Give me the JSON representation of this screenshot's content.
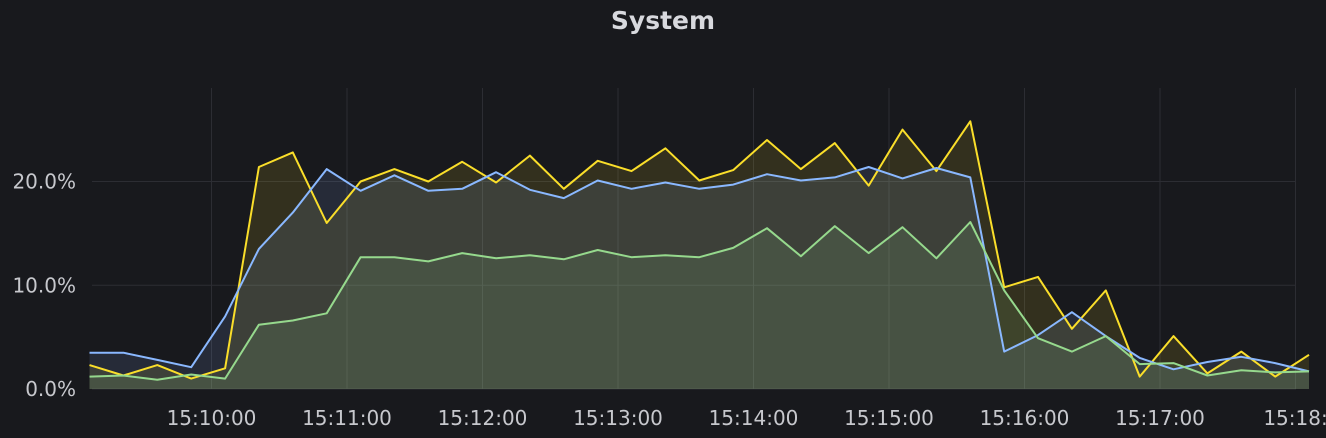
{
  "panel": {
    "title": "System"
  },
  "chart_data": {
    "type": "area",
    "title": "System",
    "xlabel": "",
    "ylabel": "",
    "x_tick_labels": [
      "15:10:00",
      "15:11:00",
      "15:12:00",
      "15:13:00",
      "15:14:00",
      "15:15:00",
      "15:16:00",
      "15:17:00",
      "15:18:"
    ],
    "y_tick_labels": [
      "0.0%",
      "10.0%",
      "20.0%"
    ],
    "y_ticks": [
      0,
      10,
      20
    ],
    "ylim": [
      0,
      30
    ],
    "x_start_minutes": -0.9,
    "x_step_minutes": 0.25,
    "grid": true,
    "legend": "none",
    "colors": {
      "yellow": "#fade2a",
      "blue": "#8ab8ff",
      "green": "#96d98d"
    },
    "series": [
      {
        "color": "yellow",
        "values": [
          2.3,
          1.3,
          2.3,
          1.0,
          2.0,
          21.4,
          22.8,
          16.0,
          20.0,
          21.2,
          20.0,
          21.9,
          19.9,
          22.5,
          19.3,
          22.0,
          21.0,
          23.2,
          20.1,
          21.1,
          24.0,
          21.2,
          23.7,
          19.6,
          25.0,
          21.0,
          25.8,
          9.8,
          10.8,
          5.8,
          9.5,
          1.2,
          5.1,
          1.5,
          3.6,
          1.2,
          3.3
        ]
      },
      {
        "color": "blue",
        "values": [
          3.5,
          3.5,
          2.8,
          2.1,
          7.0,
          13.5,
          17.0,
          21.2,
          19.1,
          20.6,
          19.1,
          19.3,
          20.9,
          19.2,
          18.4,
          20.1,
          19.3,
          19.9,
          19.3,
          19.7,
          20.7,
          20.1,
          20.4,
          21.4,
          20.3,
          21.3,
          20.4,
          3.6,
          5.2,
          7.4,
          5.1,
          3.0,
          1.9,
          2.6,
          3.1,
          2.5,
          1.7
        ]
      },
      {
        "color": "green",
        "values": [
          1.2,
          1.3,
          0.9,
          1.4,
          1.0,
          6.2,
          6.6,
          7.3,
          12.7,
          12.7,
          12.3,
          13.1,
          12.6,
          12.9,
          12.5,
          13.4,
          12.7,
          12.9,
          12.7,
          13.6,
          15.5,
          12.8,
          15.7,
          13.1,
          15.6,
          12.6,
          16.1,
          9.5,
          4.9,
          3.6,
          5.1,
          2.4,
          2.5,
          1.3,
          1.8,
          1.6,
          1.7
        ]
      }
    ]
  }
}
